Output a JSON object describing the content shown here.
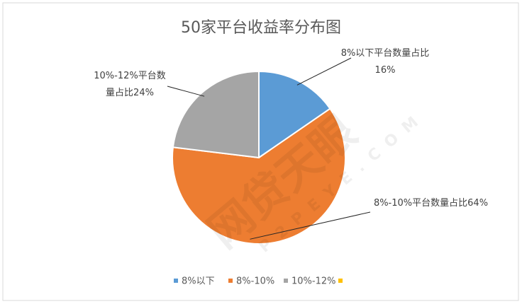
{
  "chart_data": {
    "type": "pie",
    "title": "50家平台收益率分布图",
    "categories": [
      "8%以下",
      "8%-10%",
      "10%-12%",
      null
    ],
    "values": [
      16,
      64,
      24,
      0
    ],
    "value_labels": [
      "8%以下平台数量占比16%",
      "8%-10%平台数量占比64%",
      "10%-12%平台数量占比24%",
      null
    ],
    "colors": [
      "#5b9bd5",
      "#ed7d31",
      "#a5a5a5",
      "#ffc000"
    ],
    "legend": "bottom",
    "watermark": "网贷天眼",
    "watermark_sub": "P2PEYE.COM"
  }
}
